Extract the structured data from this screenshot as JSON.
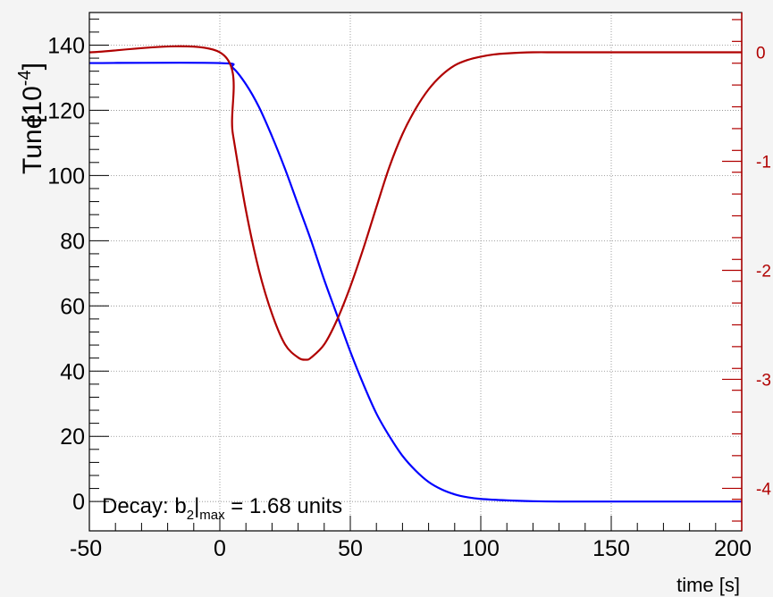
{
  "chart_data": {
    "type": "line",
    "xlabel": "time [s]",
    "ylabel": "Tune",
    "ylabel_unit": "10-4",
    "xlim": [
      -50,
      200
    ],
    "ylim": [
      -9,
      150
    ],
    "xticks": [
      "-50",
      "0",
      "50",
      "100",
      "150",
      "200"
    ],
    "yticks": [
      "0",
      "20",
      "40",
      "60",
      "80",
      "100",
      "120",
      "140"
    ],
    "grid": true,
    "right_axis": {
      "color": "#b00000",
      "ylim": [
        -4.39,
        0.365
      ],
      "ticks": [
        "0",
        "-1",
        "-2",
        "-3",
        "-4"
      ]
    },
    "annotation": {
      "prefix": "Decay: b",
      "sub1": "2",
      "sep": "|",
      "sub2": "max",
      "suffix": " = 1.68 units"
    },
    "series": [
      {
        "axis": "left",
        "color": "#0000ff",
        "x": [
          -50,
          0,
          5,
          10,
          15,
          20,
          25,
          30,
          35,
          40,
          45,
          50,
          55,
          60,
          65,
          70,
          75,
          80,
          85,
          90,
          95,
          100,
          110,
          120,
          130,
          150,
          200
        ],
        "y": [
          134.5,
          134.5,
          133,
          128,
          121,
          112,
          102,
          91,
          80,
          68,
          57,
          46,
          36,
          27,
          20,
          14,
          9.5,
          6,
          3.7,
          2.2,
          1.3,
          0.8,
          0.35,
          0.1,
          0,
          0,
          0
        ]
      },
      {
        "axis": "right",
        "color": "#b00000",
        "x": [
          -50,
          0,
          5,
          10,
          15,
          20,
          25,
          30,
          33,
          35,
          40,
          45,
          50,
          55,
          60,
          65,
          70,
          75,
          80,
          85,
          90,
          95,
          100,
          105,
          110,
          120,
          130,
          150,
          200
        ],
        "y": [
          0,
          0,
          -0.75,
          -1.45,
          -2.0,
          -2.4,
          -2.68,
          -2.8,
          -2.82,
          -2.8,
          -2.68,
          -2.45,
          -2.15,
          -1.8,
          -1.42,
          -1.05,
          -0.75,
          -0.52,
          -0.34,
          -0.21,
          -0.12,
          -0.07,
          -0.04,
          -0.02,
          -0.01,
          0,
          0,
          0,
          0
        ]
      }
    ]
  }
}
